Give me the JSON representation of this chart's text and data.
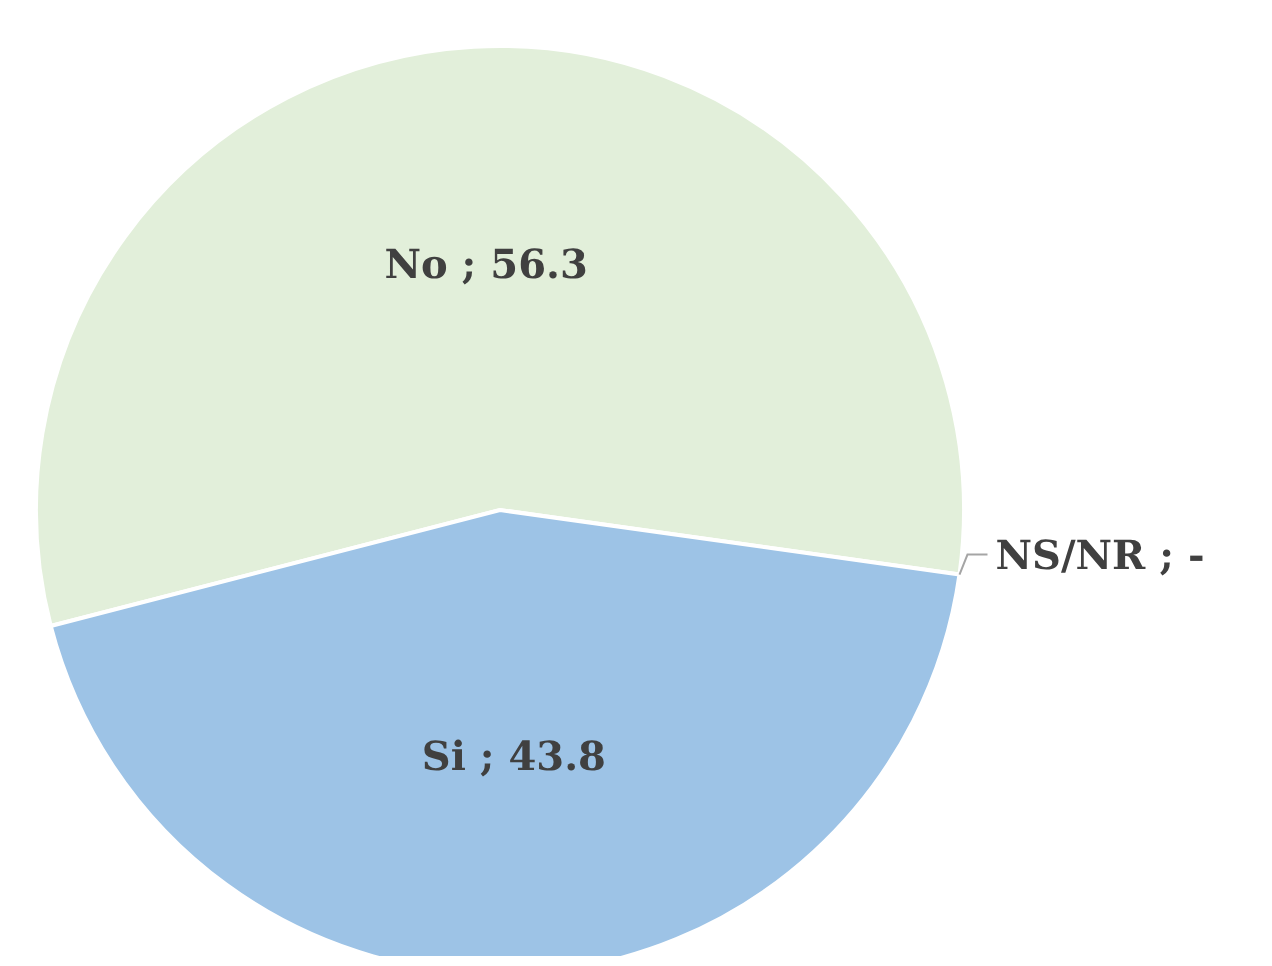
{
  "chart_data": {
    "type": "pie",
    "categories": [
      "No",
      "Si",
      "NS/NR"
    ],
    "values": [
      56.3,
      43.8,
      0
    ],
    "value_labels": [
      "56.3",
      "43.8",
      "-"
    ],
    "colors": [
      "#e2efda",
      "#9dc3e6",
      "#a5a5a5"
    ]
  }
}
